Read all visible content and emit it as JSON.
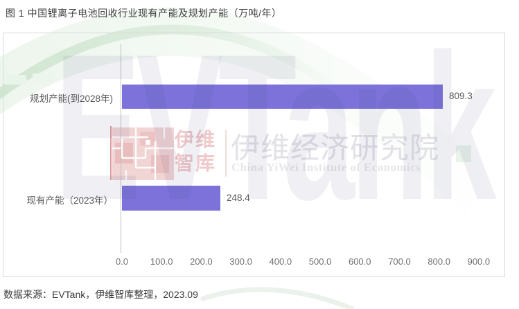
{
  "title": "图 1 中国锂离子电池回收行业现有产能及规划产能（万吨/年）",
  "source": "数据来源：EVTank，伊维智库整理，2023.09",
  "chart_data": {
    "type": "bar",
    "orientation": "horizontal",
    "title": "图 1 中国锂离子电池回收行业现有产能及规划产能（万吨/年）",
    "categories": [
      "规划产能(到2028年)",
      "现有产能（2023年）"
    ],
    "values": [
      809.3,
      248.4
    ],
    "value_labels": [
      "809.3",
      "248.4"
    ],
    "x_ticks": [
      "0.0",
      "100.0",
      "200.0",
      "300.0",
      "400.0",
      "500.0",
      "600.0",
      "700.0",
      "800.0",
      "900.0"
    ],
    "xlim": [
      0,
      900
    ],
    "xlabel": "",
    "ylabel": "",
    "grid": false,
    "legend": "none",
    "bar_color": "#7c72da",
    "unit": "万吨/年"
  },
  "watermark": {
    "giant_text": "EVTank",
    "logo_cn_line1": "伊维",
    "logo_cn_line2": "智库",
    "institute_cn": "伊维经济研究院",
    "institute_en": "China YiWei Institute of Economics",
    "green_accent": "#cfe6d0",
    "logo_pink": "#efcdcd"
  }
}
